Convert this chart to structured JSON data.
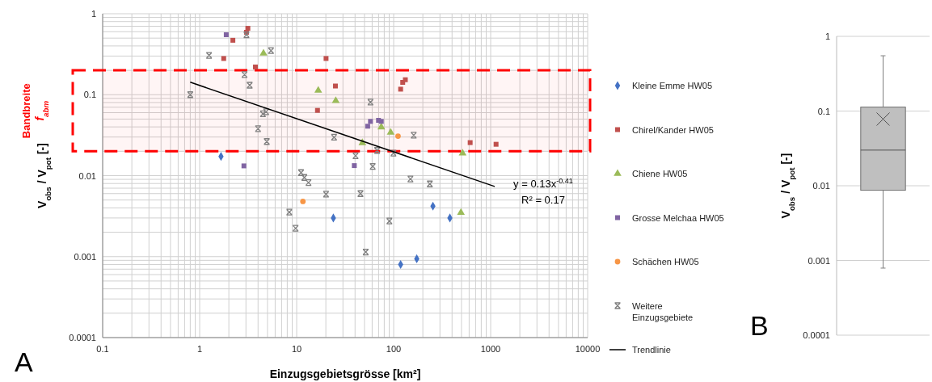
{
  "chart_data": [
    {
      "type": "scatter",
      "xlabel": "Einzugsgebietsgrösse [km²]",
      "ylabel": "V$_{obs}$ / V$_{pot}$  [-]",
      "log": "xy",
      "grid": true,
      "legend": "right",
      "xlim": [
        0.1,
        10000
      ],
      "xticks": [
        0.1,
        1,
        10,
        100,
        1000,
        10000
      ],
      "ylim": [
        0.0001,
        1
      ],
      "yticks": [
        0.0001,
        0.001,
        0.01,
        0.1,
        1
      ],
      "series": [
        {
          "name": "Kleine Emme HW05",
          "color": "#4472c4",
          "marker": "diamond",
          "x": [
            1.66,
            23.9,
            254,
            380,
            118,
            173
          ],
          "values": [
            0.0173,
            0.003,
            0.0042,
            0.003,
            0.0008,
            0.00094
          ]
        },
        {
          "name": "Chirel/Kander HW05",
          "color": "#c0504d",
          "marker": "square",
          "x": [
            1.77,
            2.2,
            3.04,
            3.14,
            3.76,
            20.1,
            16.4,
            25.1,
            118,
            124,
            132,
            615,
            1137
          ],
          "values": [
            0.28,
            0.47,
            0.59,
            0.66,
            0.22,
            0.28,
            0.064,
            0.128,
            0.117,
            0.142,
            0.153,
            0.0256,
            0.0244
          ]
        },
        {
          "name": "Chiene HW05",
          "color": "#9bbb59",
          "marker": "triangle",
          "x": [
            4.55,
            16.7,
            25.3,
            74.6,
            93.2,
            47.6,
            514,
            494
          ],
          "values": [
            0.325,
            0.113,
            0.084,
            0.0398,
            0.0342,
            0.0254,
            0.0189,
            0.0035
          ]
        },
        {
          "name": "Grosse Melchaa HW05",
          "color": "#8064a2",
          "marker": "square",
          "x": [
            1.88,
            2.86,
            57.7,
            54,
            69.8,
            74.6,
            39.3
          ],
          "values": [
            0.55,
            0.0132,
            0.0468,
            0.0408,
            0.0482,
            0.0468,
            0.0133
          ]
        },
        {
          "name": "Schächen HW05",
          "color": "#f79646",
          "marker": "circle",
          "x": [
            11.6,
            111
          ],
          "values": [
            0.0048,
            0.0308
          ]
        },
        {
          "name": "Weitere Einzugsgebiete",
          "color": "#7f7f7f",
          "marker": "cross",
          "x": [
            0.8,
            1.25,
            3.04,
            2.9,
            3.28,
            5.44,
            4.49,
            4.85,
            4.0,
            4.92,
            24.3,
            11.1,
            12.0,
            13.25,
            20.1,
            8.4,
            9.75,
            57.7,
            161,
            40.5,
            60.8,
            67.6,
            99.5,
            149,
            236,
            45.5,
            90.4,
            51.5
          ],
          "values": [
            0.1,
            0.306,
            0.55,
            0.177,
            0.131,
            0.35,
            0.058,
            0.0615,
            0.038,
            0.0264,
            0.0298,
            0.0109,
            0.0095,
            0.0082,
            0.0059,
            0.00354,
            0.00224,
            0.081,
            0.0316,
            0.0176,
            0.013,
            0.0205,
            0.019,
            0.0091,
            0.0079,
            0.006,
            0.00275,
            0.00114
          ]
        },
        {
          "name": "Trendlinie",
          "type": "line",
          "color": "#000000",
          "x": [
            0.8,
            1100
          ],
          "values": [
            0.1425,
            0.00736
          ]
        }
      ],
      "bands": [
        {
          "axis": "y",
          "from": 0.02,
          "to": 0.2,
          "label": "Bandbreite f$_{abm}$",
          "color": "#ff0000"
        }
      ],
      "annotations": [
        "y = 0.13x$^{-0.41}$",
        "R² = 0.17",
        "A"
      ]
    },
    {
      "type": "box",
      "ylabel": "V$_{obs}$ / V$_{pot}$  [-]",
      "log": true,
      "grid": "y",
      "tick_labels": "y",
      "categories": [
        null
      ],
      "color": "#bfbfbf",
      "ylim": [
        0.0001,
        1
      ],
      "yticks": [
        0.0001,
        0.001,
        0.01,
        0.1,
        1
      ],
      "boxes": [
        {
          "low": 0.00079,
          "q1": 0.0087,
          "median": 0.03,
          "q3": 0.113,
          "high": 0.55,
          "mean": 0.078
        }
      ],
      "annotations": [
        "B"
      ]
    }
  ]
}
